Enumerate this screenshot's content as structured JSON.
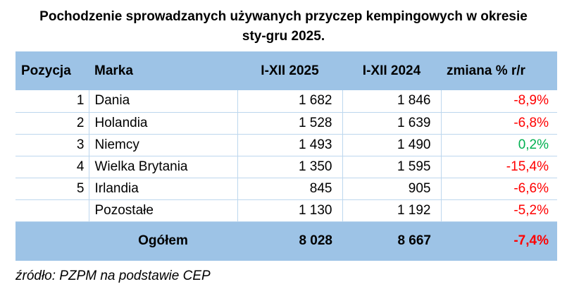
{
  "title": {
    "line1": "Pochodzenie sprowadzanych używanych przyczep kempingowych w okresie",
    "line2": "sty-gru 2025."
  },
  "table": {
    "headers": {
      "position": "Pozycja",
      "brand": "Marka",
      "current": "I-XII 2025",
      "previous": "I-XII 2024",
      "change": "zmiana % r/r"
    },
    "rows": [
      {
        "position": "1",
        "brand": "Dania",
        "current": "1 682",
        "previous": "1 846",
        "change": "-8,9%",
        "trend": "negative"
      },
      {
        "position": "2",
        "brand": "Holandia",
        "current": "1 528",
        "previous": "1 639",
        "change": "-6,8%",
        "trend": "negative"
      },
      {
        "position": "3",
        "brand": "Niemcy",
        "current": "1 493",
        "previous": "1 490",
        "change": "0,2%",
        "trend": "positive"
      },
      {
        "position": "4",
        "brand": "Wielka Brytania",
        "current": "1 350",
        "previous": "1 595",
        "change": "-15,4%",
        "trend": "negative"
      },
      {
        "position": "5",
        "brand": "Irlandia",
        "current": "845",
        "previous": "905",
        "change": "-6,6%",
        "trend": "negative"
      },
      {
        "position": "",
        "brand": "Pozostałe",
        "current": "1 130",
        "previous": "1 192",
        "change": "-5,2%",
        "trend": "negative"
      }
    ],
    "total": {
      "label": "Ogółem",
      "current": "8 028",
      "previous": "8 667",
      "change": "-7,4%",
      "trend": "negative"
    }
  },
  "source": "źródło: PZPM na podstawie CEP",
  "colors": {
    "header_bg": "#9dc3e6",
    "negative": "#ff0000",
    "positive": "#00b050",
    "row_border": "#bdd7ee"
  }
}
